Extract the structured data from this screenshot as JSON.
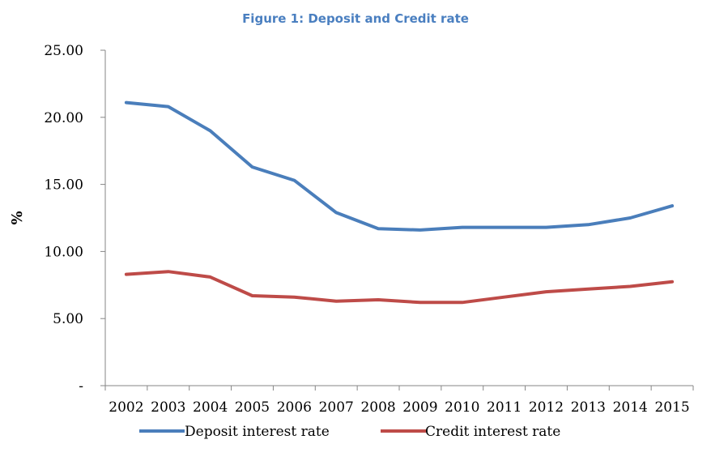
{
  "chart_data": {
    "type": "line",
    "title": "Figure 1: Deposit and Credit rate",
    "xlabel": "",
    "ylabel": "%",
    "categories": [
      "2002",
      "2003",
      "2004",
      "2005",
      "2006",
      "2007",
      "2008",
      "2009",
      "2010",
      "2011",
      "2012",
      "2013",
      "2014",
      "2015"
    ],
    "ylim": [
      0,
      25
    ],
    "yticks": [
      0,
      5,
      10,
      15,
      20,
      25
    ],
    "ytick_labels": [
      "-",
      "5.00",
      "10.00",
      "15.00",
      "20.00",
      "25.00"
    ],
    "grid": false,
    "legend_position": "bottom",
    "series": [
      {
        "name": "Deposit interest rate",
        "color": "#4a7ebb",
        "values": [
          21.1,
          20.8,
          19.0,
          16.3,
          15.3,
          12.9,
          11.7,
          11.6,
          11.8,
          11.8,
          11.8,
          12.0,
          12.5,
          13.4
        ]
      },
      {
        "name": "Credit interest rate",
        "color": "#be4b48",
        "values": [
          8.3,
          8.5,
          8.1,
          6.7,
          6.6,
          6.3,
          6.4,
          6.2,
          6.2,
          6.6,
          7.0,
          7.2,
          7.4,
          7.75
        ]
      }
    ]
  }
}
